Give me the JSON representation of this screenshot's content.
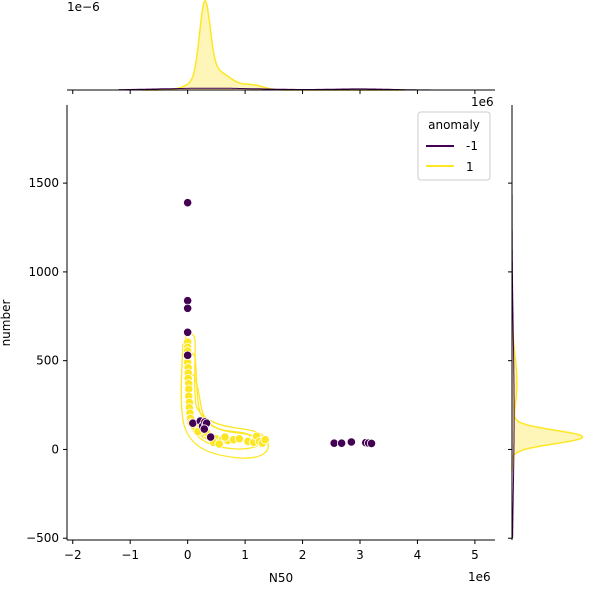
{
  "chart_data": {
    "type": "scatter",
    "xlabel": "N50",
    "ylabel": "number",
    "x_offset_text": "1e6",
    "y_offset_text": "",
    "top_marginal_offset_text": "1e−6",
    "right_marginal_offset_text": "1e6",
    "xlim": [
      -2.1,
      5.35
    ],
    "ylim": [
      -510,
      1940
    ],
    "x_ticks": [
      {
        "value": -2,
        "label": "−2"
      },
      {
        "value": -1,
        "label": "−1"
      },
      {
        "value": 0,
        "label": "0"
      },
      {
        "value": 1,
        "label": "1"
      },
      {
        "value": 2,
        "label": "2"
      },
      {
        "value": 3,
        "label": "3"
      },
      {
        "value": 4,
        "label": "4"
      },
      {
        "value": 5,
        "label": "5"
      }
    ],
    "y_ticks": [
      {
        "value": -500,
        "label": "−500"
      },
      {
        "value": 0,
        "label": "0"
      },
      {
        "value": 500,
        "label": "500"
      },
      {
        "value": 1000,
        "label": "1000"
      },
      {
        "value": 1500,
        "label": "1500"
      }
    ],
    "legend": {
      "title": "anomaly",
      "placement": "top-right",
      "entries": [
        {
          "label": "-1",
          "color": "#440154"
        },
        {
          "label": "1",
          "color": "#fde725"
        }
      ]
    },
    "colors": {
      "anomaly_neg": "#440154",
      "normal": "#fde725",
      "normal_fill": "#fdf3a0"
    },
    "series": [
      {
        "name": "-1",
        "color": "#440154",
        "points": [
          [
            0.0,
            1390
          ],
          [
            0.0,
            838
          ],
          [
            0.0,
            795
          ],
          [
            0.0,
            660
          ],
          [
            0.0,
            530
          ],
          [
            0.09,
            148
          ],
          [
            0.22,
            160
          ],
          [
            0.26,
            132
          ],
          [
            0.3,
            155
          ],
          [
            0.33,
            148
          ],
          [
            0.29,
            115
          ],
          [
            0.4,
            70
          ],
          [
            2.55,
            35
          ],
          [
            2.68,
            35
          ],
          [
            2.85,
            42
          ],
          [
            3.1,
            38
          ],
          [
            3.15,
            36
          ],
          [
            3.2,
            34
          ]
        ]
      },
      {
        "name": "1",
        "color": "#fde725",
        "points": [
          [
            0.0,
            605
          ],
          [
            0.0,
            575
          ],
          [
            0.0,
            555
          ],
          [
            0.0,
            520
          ],
          [
            0.0,
            490
          ],
          [
            0.01,
            460
          ],
          [
            0.01,
            430
          ],
          [
            0.01,
            400
          ],
          [
            0.02,
            370
          ],
          [
            0.02,
            340
          ],
          [
            0.02,
            300
          ],
          [
            0.03,
            265
          ],
          [
            0.03,
            235
          ],
          [
            0.04,
            205
          ],
          [
            0.05,
            175
          ],
          [
            0.06,
            150
          ],
          [
            0.12,
            130
          ],
          [
            0.2,
            110
          ],
          [
            0.25,
            90
          ],
          [
            0.3,
            80
          ],
          [
            0.35,
            75
          ],
          [
            0.42,
            68
          ],
          [
            0.5,
            60
          ],
          [
            0.6,
            55
          ],
          [
            0.7,
            50
          ],
          [
            0.8,
            55
          ],
          [
            0.9,
            60
          ],
          [
            1.05,
            45
          ],
          [
            1.15,
            40
          ],
          [
            1.2,
            75
          ],
          [
            1.25,
            45
          ],
          [
            1.3,
            35
          ],
          [
            1.35,
            55
          ],
          [
            0.45,
            40
          ],
          [
            0.55,
            30
          ],
          [
            0.18,
            100
          ],
          [
            0.33,
            95
          ],
          [
            0.65,
            70
          ]
        ]
      }
    ],
    "top_marginal": {
      "series": "1",
      "peak_value": 2.8
    },
    "right_marginal": {
      "series": "1",
      "peak_value": 75
    }
  }
}
